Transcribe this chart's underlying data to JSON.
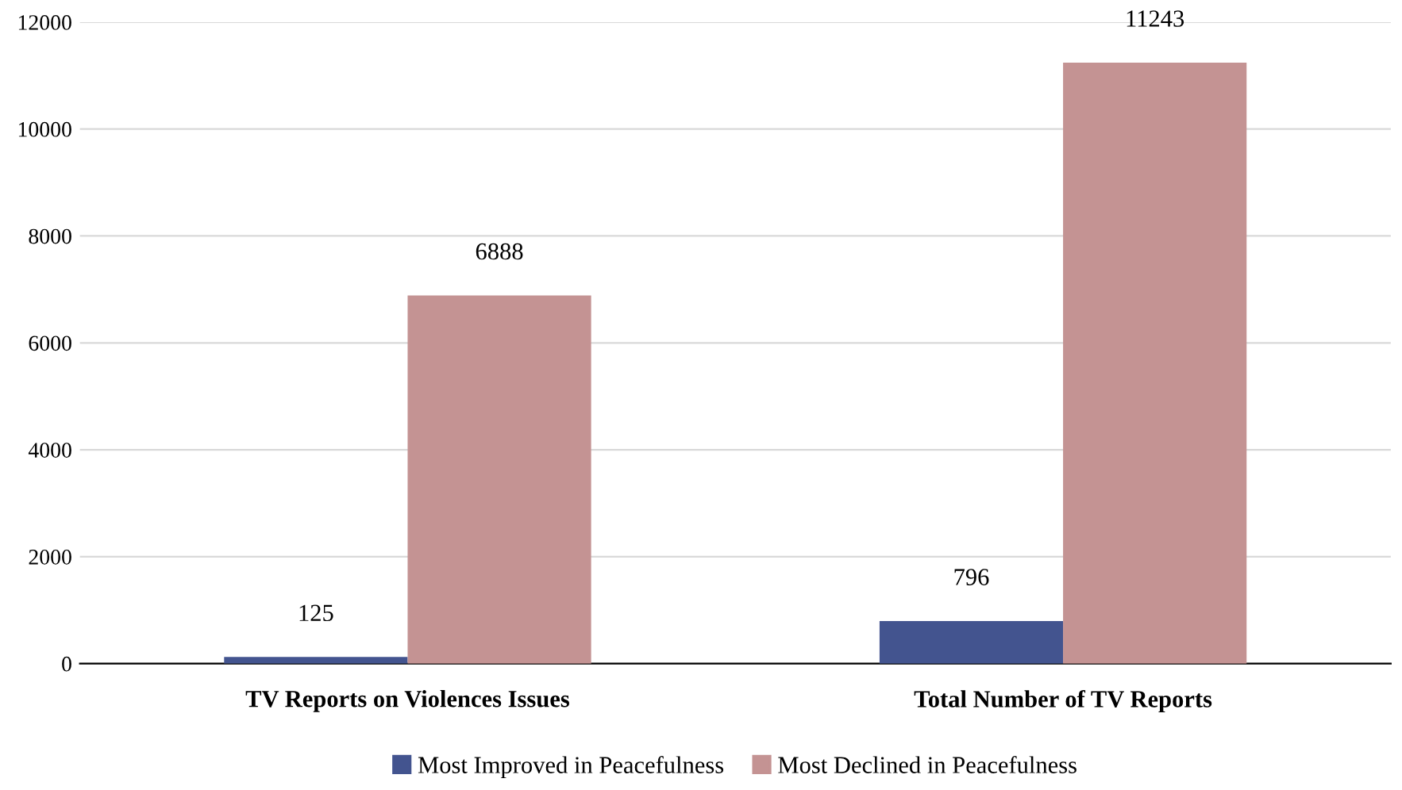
{
  "chart_data": {
    "type": "bar",
    "categories": [
      "TV Reports on Violences Issues",
      "Total Number of TV Reports"
    ],
    "series": [
      {
        "name": "Most Improved in Peacefulness",
        "color": "#43548f",
        "values": [
          125,
          796
        ]
      },
      {
        "name": "Most Declined in Peacefulness",
        "color": "#c49393",
        "values": [
          6888,
          11243
        ]
      }
    ],
    "ylim": [
      0,
      12000
    ],
    "yticks": [
      0,
      2000,
      4000,
      6000,
      8000,
      10000,
      12000
    ],
    "grid": "y",
    "legend": "bottom",
    "data_labels": true
  }
}
